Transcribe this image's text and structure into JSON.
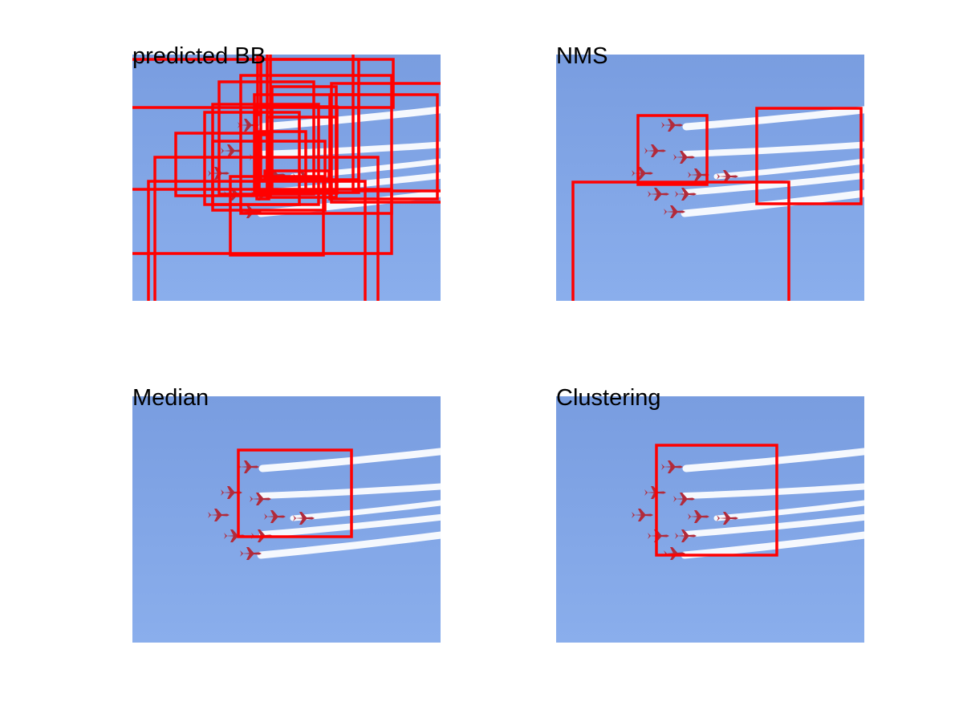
{
  "panels": [
    {
      "title": "predicted BB"
    },
    {
      "title": "NMS"
    },
    {
      "title": "Median"
    },
    {
      "title": "Clustering"
    }
  ],
  "colors": {
    "sky_top": "#7a9fe0",
    "sky_bottom": "#8aafeb",
    "box": "#ff0000",
    "trail": "#ffffff",
    "jet": "#b22a3a"
  }
}
